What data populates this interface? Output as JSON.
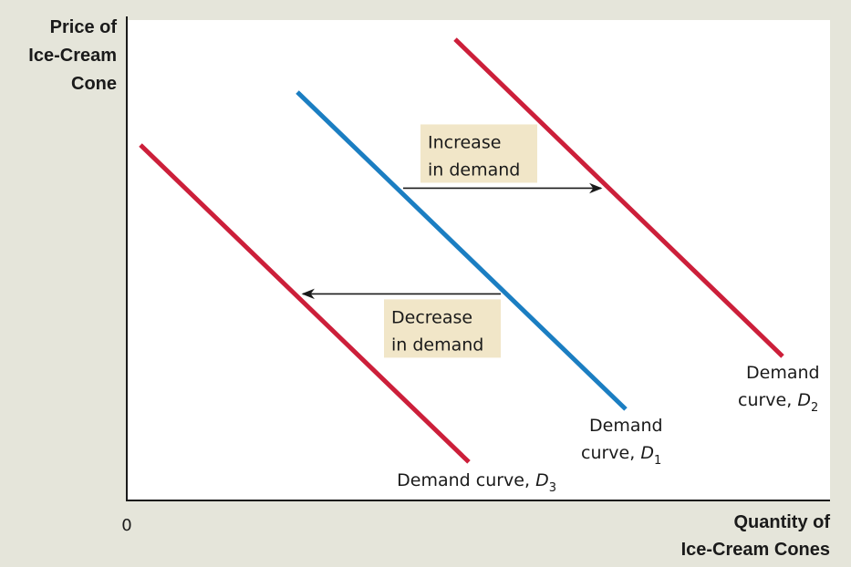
{
  "chart_data": {
    "type": "line",
    "ylabel": [
      "Price of",
      "Ice-Cream",
      "Cone"
    ],
    "xlabel": [
      "Quantity of",
      "Ice-Cream Cones"
    ],
    "origin_label": "0",
    "grid": false,
    "series": [
      {
        "name_prefix": "Demand curve, ",
        "name_letter": "D",
        "name_sub": "3",
        "label_lines": 1,
        "color": "#cc1f3a",
        "points": [
          [
            15,
            74
          ],
          [
            375,
            8
          ]
        ]
      },
      {
        "name_prefix": "Demand",
        "name_prefix_line2": "curve, ",
        "name_letter": "D",
        "name_sub": "1",
        "label_lines": 2,
        "color": "#1b7ec2",
        "points": [
          [
            187,
            85
          ],
          [
            547,
            19
          ]
        ]
      },
      {
        "name_prefix": "Demand",
        "name_prefix_line2": "curve, ",
        "name_letter": "D",
        "name_sub": "2",
        "label_lines": 2,
        "color": "#cc1f3a",
        "points": [
          [
            360,
            96
          ],
          [
            719,
            30
          ]
        ]
      }
    ],
    "annotations": [
      {
        "lines": [
          "Increase",
          "in demand"
        ],
        "direction": "right",
        "from": [
          303,
          65
        ],
        "to": [
          520,
          65
        ]
      },
      {
        "lines": [
          "Decrease",
          "in demand"
        ],
        "direction": "left",
        "from": [
          410,
          43
        ],
        "to": [
          193,
          43
        ]
      }
    ],
    "xlim": [
      0,
      771
    ],
    "ylim": [
      0,
      100
    ]
  }
}
